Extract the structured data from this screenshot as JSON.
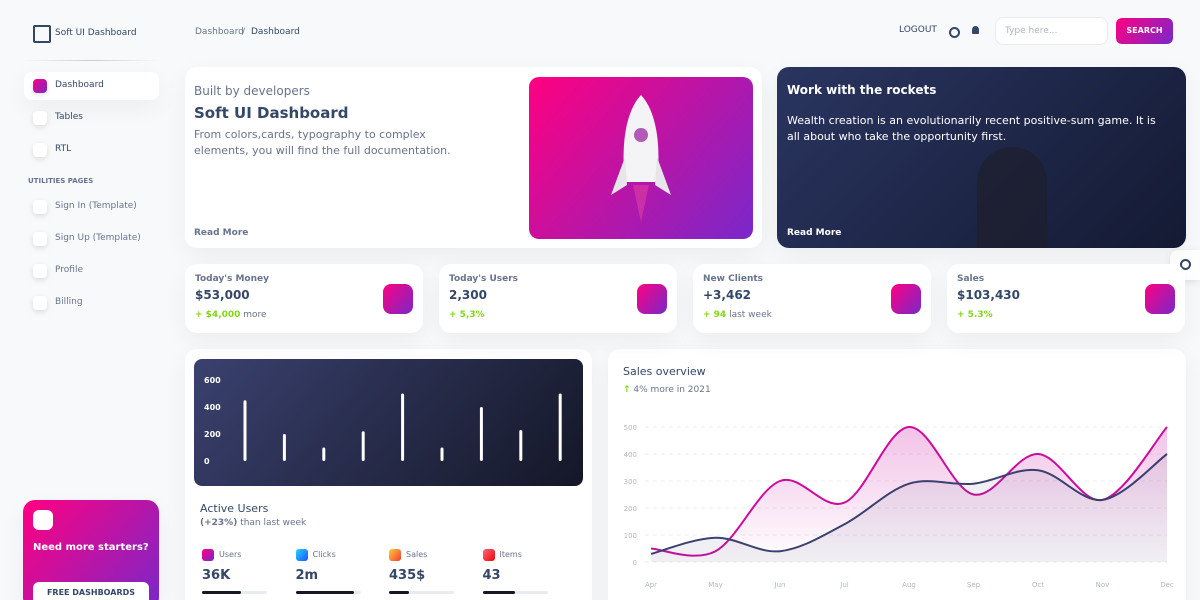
{
  "sidebar": {
    "brand": "Soft UI Dashboard",
    "nav": [
      "Dashboard",
      "Tables",
      "RTL"
    ],
    "section": "UTILITIES PAGES",
    "pages": [
      "Sign In (Template)",
      "Sign Up (Template)",
      "Profile",
      "Billing"
    ],
    "promo": {
      "title": "Need more starters?",
      "button": "FREE DASHBOARDS"
    }
  },
  "header": {
    "breadcrumb": [
      "Dashboard",
      "Dashboard"
    ],
    "separator": "/",
    "logout": "LOGOUT",
    "search_placeholder": "Type here...",
    "search_button": "SEARCH"
  },
  "intro_card": {
    "kicker": "Built by developers",
    "title": "Soft UI Dashboard",
    "text": "From colors,cards, typography to complex elements, you will find the full documentation.",
    "link": "Read More"
  },
  "rockets_card": {
    "title": "Work with the rockets",
    "text": "Wealth creation is an evolutionarily recent positive-sum game. It is all about who take the opportunity first.",
    "link": "Read More"
  },
  "stats": [
    {
      "label": "Today's Money",
      "value": "$53,000",
      "change": "+ $4,000",
      "note": "more"
    },
    {
      "label": "Today's Users",
      "value": "2,300",
      "change": "+ 5,3%"
    },
    {
      "label": "New Clients",
      "value": "+3,462",
      "change": "+ 94",
      "note": "last week"
    },
    {
      "label": "Sales",
      "value": "$103,430",
      "change": "+ 5.3%"
    }
  ],
  "active_users": {
    "title": "Active Users",
    "change": "(+23%)",
    "note": "than last week",
    "items": [
      {
        "label": "Users",
        "value": "36K",
        "progress": 60
      },
      {
        "label": "Clicks",
        "value": "2m",
        "progress": 90
      },
      {
        "label": "Sales",
        "value": "435$",
        "progress": 30
      },
      {
        "label": "Items",
        "value": "43",
        "progress": 50
      }
    ]
  },
  "sales_overview": {
    "title": "Sales overview",
    "change": "4% more in 2021"
  },
  "chart_data": [
    {
      "type": "bar",
      "values": [
        450,
        200,
        100,
        220,
        500,
        100,
        400,
        230,
        500
      ],
      "color": "#ffffff",
      "ylim": [
        0,
        600
      ],
      "yticks": [
        0,
        200,
        400,
        600
      ]
    },
    {
      "type": "line",
      "categories": [
        "Apr",
        "May",
        "Jun",
        "Jul",
        "Aug",
        "Sep",
        "Oct",
        "Nov",
        "Dec"
      ],
      "series": [
        {
          "color": "#cb0c9f",
          "values": [
            50,
            40,
            300,
            220,
            500,
            250,
            400,
            230,
            500
          ]
        },
        {
          "color": "#3a416f",
          "values": [
            30,
            90,
            40,
            140,
            290,
            290,
            340,
            230,
            400
          ]
        }
      ],
      "ylim": [
        0,
        500
      ],
      "yticks": [
        0,
        100,
        200,
        300,
        400,
        500
      ],
      "grid": true
    }
  ]
}
